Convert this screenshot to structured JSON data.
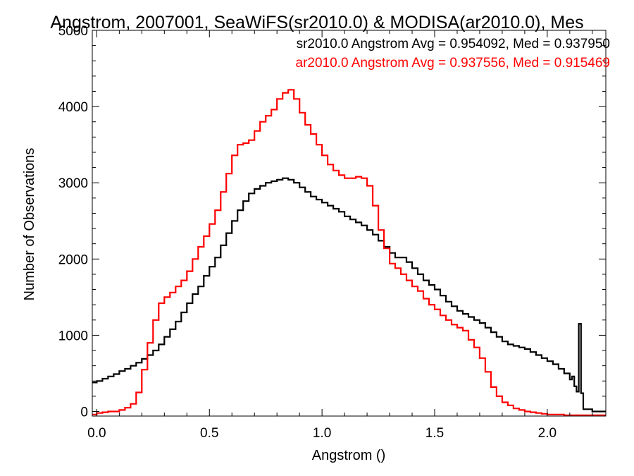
{
  "chart_data": {
    "type": "line",
    "title": "Angstrom, 2007001, SeaWiFS(sr2010.0) & MODISA(ar2010.0), Mes",
    "xlabel": "Angstrom ()",
    "ylabel": "Number of Observations",
    "xlim": [
      -0.02,
      2.26
    ],
    "ylim": [
      -60,
      5000
    ],
    "grid": false,
    "legend_position": "top-right",
    "x_ticks": [
      {
        "value": 0.0,
        "label": "0.0"
      },
      {
        "value": 0.5,
        "label": "0.5"
      },
      {
        "value": 1.0,
        "label": "1.0"
      },
      {
        "value": 1.5,
        "label": "1.5"
      },
      {
        "value": 2.0,
        "label": "2.0"
      }
    ],
    "y_ticks": [
      {
        "value": 0,
        "label": "0"
      },
      {
        "value": 1000,
        "label": "1000"
      },
      {
        "value": 2000,
        "label": "2000"
      },
      {
        "value": 3000,
        "label": "3000"
      },
      {
        "value": 4000,
        "label": "4000"
      },
      {
        "value": 5000,
        "label": "5000"
      }
    ],
    "series": [
      {
        "name": "sr2010.0",
        "legend": "sr2010.0 Angstrom Avg = 0.954092, Med = 0.937950",
        "color": "#000000",
        "x": [
          -0.02,
          0.0,
          0.025,
          0.05,
          0.075,
          0.1,
          0.125,
          0.15,
          0.175,
          0.2,
          0.225,
          0.25,
          0.275,
          0.3,
          0.325,
          0.35,
          0.375,
          0.4,
          0.425,
          0.45,
          0.475,
          0.5,
          0.525,
          0.55,
          0.575,
          0.6,
          0.625,
          0.65,
          0.675,
          0.7,
          0.725,
          0.75,
          0.775,
          0.8,
          0.825,
          0.85,
          0.875,
          0.9,
          0.925,
          0.95,
          0.975,
          1.0,
          1.025,
          1.05,
          1.075,
          1.1,
          1.125,
          1.15,
          1.175,
          1.2,
          1.225,
          1.25,
          1.275,
          1.3,
          1.325,
          1.35,
          1.375,
          1.4,
          1.425,
          1.45,
          1.475,
          1.5,
          1.525,
          1.55,
          1.575,
          1.6,
          1.625,
          1.65,
          1.675,
          1.7,
          1.725,
          1.75,
          1.775,
          1.8,
          1.825,
          1.85,
          1.875,
          1.9,
          1.925,
          1.95,
          1.975,
          2.0,
          2.025,
          2.05,
          2.075,
          2.1,
          2.11,
          2.12,
          2.13,
          2.14,
          2.15,
          2.16,
          2.2,
          2.26
        ],
        "y": [
          380,
          400,
          430,
          460,
          490,
          530,
          560,
          600,
          640,
          690,
          740,
          800,
          880,
          980,
          1080,
          1180,
          1300,
          1420,
          1540,
          1640,
          1780,
          1900,
          2020,
          2180,
          2340,
          2500,
          2640,
          2760,
          2860,
          2920,
          2960,
          3000,
          3020,
          3040,
          3060,
          3040,
          3000,
          2940,
          2880,
          2820,
          2780,
          2740,
          2700,
          2660,
          2620,
          2560,
          2520,
          2480,
          2440,
          2380,
          2320,
          2240,
          2160,
          2080,
          2020,
          2020,
          1960,
          1880,
          1800,
          1720,
          1660,
          1600,
          1520,
          1440,
          1380,
          1320,
          1280,
          1240,
          1200,
          1160,
          1100,
          1040,
          980,
          920,
          880,
          860,
          840,
          820,
          780,
          740,
          700,
          660,
          620,
          560,
          500,
          420,
          460,
          330,
          260,
          1150,
          240,
          30,
          0,
          0
        ]
      },
      {
        "name": "ar2010.0",
        "legend": "ar2010.0 Angstrom Avg = 0.937556, Med = 0.915469",
        "color": "#ff0000",
        "x": [
          -0.02,
          0.0,
          0.025,
          0.05,
          0.075,
          0.1,
          0.125,
          0.15,
          0.175,
          0.2,
          0.225,
          0.25,
          0.275,
          0.3,
          0.325,
          0.35,
          0.375,
          0.4,
          0.425,
          0.45,
          0.475,
          0.5,
          0.525,
          0.55,
          0.575,
          0.6,
          0.625,
          0.65,
          0.675,
          0.7,
          0.725,
          0.75,
          0.775,
          0.8,
          0.825,
          0.85,
          0.875,
          0.9,
          0.925,
          0.95,
          0.975,
          1.0,
          1.025,
          1.05,
          1.075,
          1.1,
          1.125,
          1.15,
          1.175,
          1.2,
          1.225,
          1.25,
          1.275,
          1.3,
          1.325,
          1.35,
          1.375,
          1.4,
          1.425,
          1.45,
          1.475,
          1.5,
          1.525,
          1.55,
          1.575,
          1.6,
          1.625,
          1.65,
          1.675,
          1.7,
          1.725,
          1.75,
          1.775,
          1.8,
          1.825,
          1.85,
          1.875,
          1.9,
          1.925,
          1.95,
          1.975,
          2.0,
          2.025,
          2.05,
          2.075,
          2.1,
          2.125,
          2.15,
          2.2,
          2.26
        ],
        "y": [
          -40,
          -20,
          -10,
          0,
          0,
          20,
          50,
          100,
          250,
          550,
          900,
          1200,
          1420,
          1500,
          1560,
          1640,
          1720,
          1840,
          2000,
          2160,
          2300,
          2460,
          2640,
          2880,
          3120,
          3360,
          3500,
          3520,
          3560,
          3680,
          3800,
          3880,
          3960,
          4100,
          4180,
          4220,
          4100,
          3920,
          3760,
          3640,
          3500,
          3360,
          3240,
          3160,
          3100,
          3060,
          3060,
          3080,
          3060,
          2960,
          2700,
          2380,
          2140,
          1940,
          1880,
          1800,
          1720,
          1640,
          1580,
          1480,
          1400,
          1340,
          1260,
          1200,
          1140,
          1100,
          1060,
          940,
          840,
          700,
          520,
          320,
          200,
          120,
          80,
          40,
          20,
          0,
          -10,
          -20,
          -30,
          -40,
          -40,
          -40,
          -50,
          -50,
          -50,
          -50,
          -50,
          -50
        ]
      }
    ]
  }
}
